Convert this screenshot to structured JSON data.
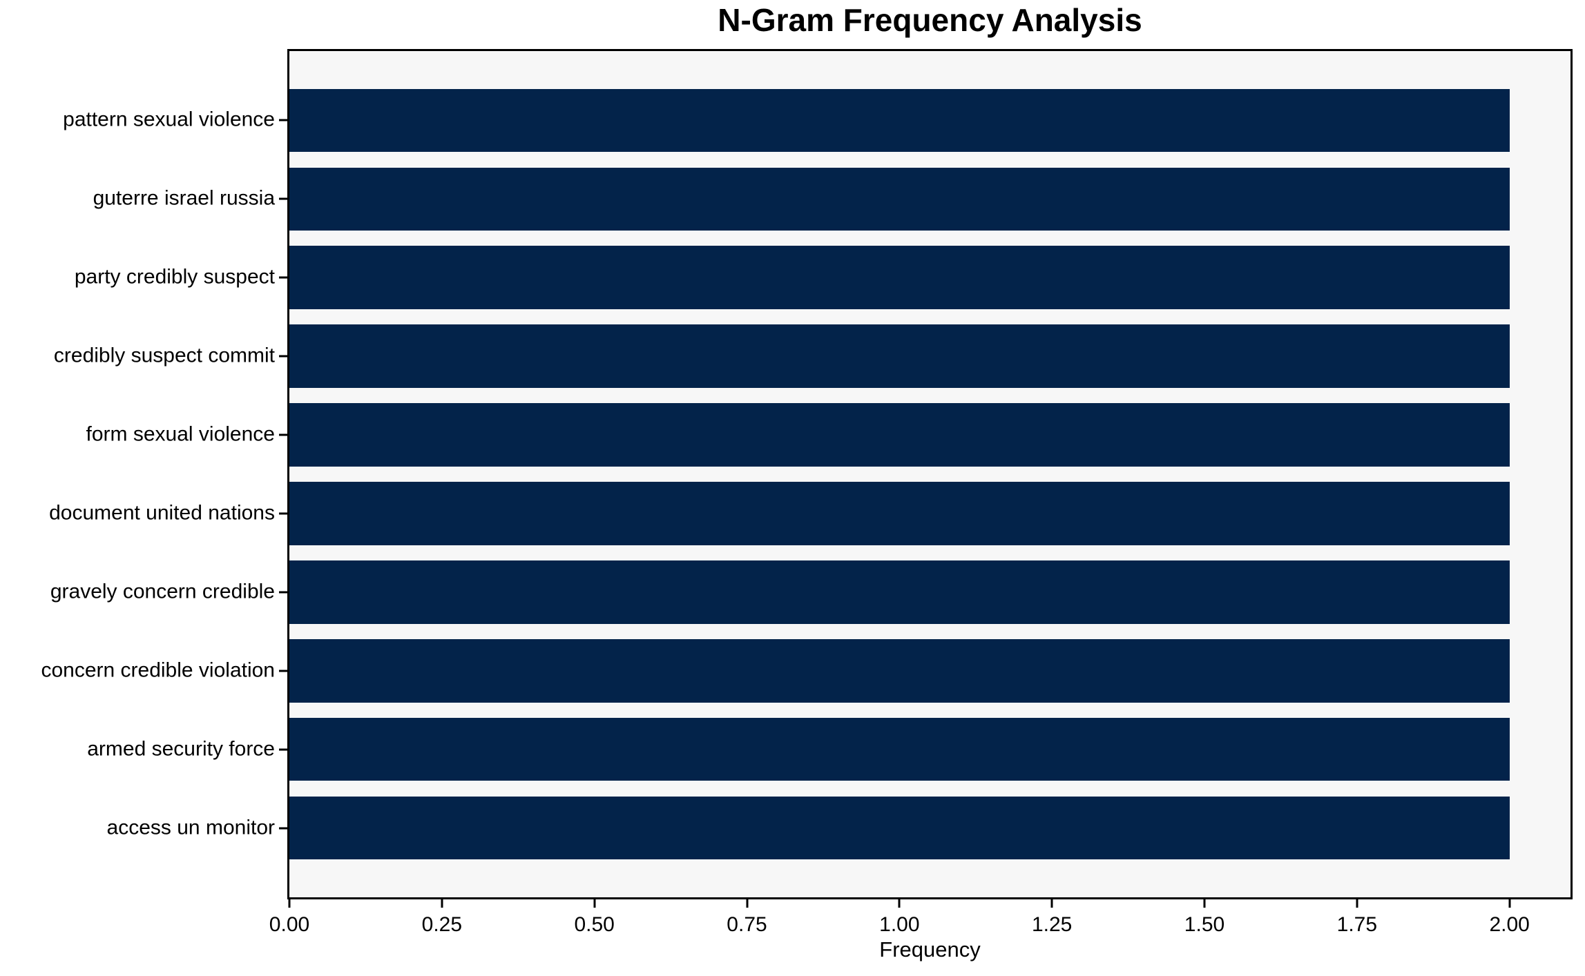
{
  "chart_data": {
    "type": "bar",
    "orientation": "horizontal",
    "title": "N-Gram Frequency Analysis",
    "xlabel": "Frequency",
    "ylabel": "",
    "categories": [
      "pattern sexual violence",
      "guterre israel russia",
      "party credibly suspect",
      "credibly suspect commit",
      "form sexual violence",
      "document united nations",
      "gravely concern credible",
      "concern credible violation",
      "armed security force",
      "access un monitor"
    ],
    "values": [
      2,
      2,
      2,
      2,
      2,
      2,
      2,
      2,
      2,
      2
    ],
    "xlim": [
      0,
      2.1
    ],
    "xticks": [
      0,
      0.25,
      0.5,
      0.75,
      1.0,
      1.25,
      1.5,
      1.75,
      2.0
    ],
    "xtick_decimals": 2,
    "grid": false,
    "legend": null,
    "bar_color": "#03234a",
    "plot_background": "#f7f7f7",
    "figure_background": "#ffffff",
    "spine_color": "#000000",
    "bar_fraction_of_slot": 0.8,
    "edge_padding_fraction": 0.0445
  }
}
